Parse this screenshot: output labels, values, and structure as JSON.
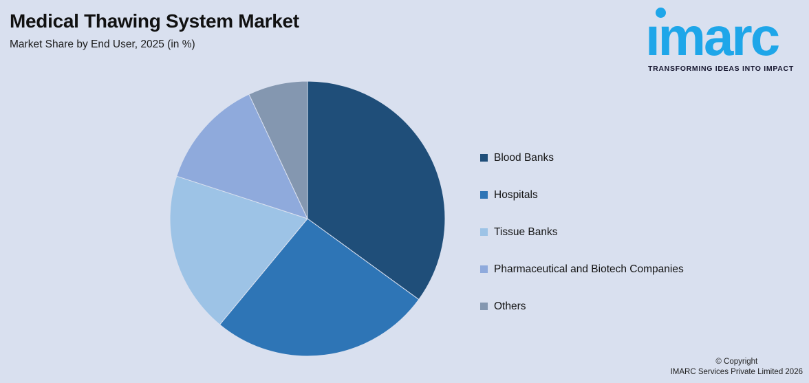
{
  "header": {
    "title": "Medical Thawing System Market",
    "subtitle": "Market Share by End User, 2025 (in %)"
  },
  "logo": {
    "text": "imarc",
    "tagline": "TRANSFORMING IDEAS INTO IMPACT",
    "brand_color": "#1ea6e9"
  },
  "chart_data": {
    "type": "pie",
    "title": "Medical Thawing System Market",
    "subtitle": "Market Share by End User, 2025 (in %)",
    "categories": [
      "Blood Banks",
      "Hospitals",
      "Tissue Banks",
      "Pharmaceutical and Biotech Companies",
      "Others"
    ],
    "values": [
      35,
      26,
      19,
      13,
      7
    ],
    "colors": [
      "#1f4e79",
      "#2e75b6",
      "#9dc3e6",
      "#8faadc",
      "#8497b0"
    ],
    "background": "#d9e0ef",
    "start_angle_deg": 0,
    "direction": "clockwise",
    "legend_position": "right",
    "data_labels_shown": false
  },
  "footer": {
    "line1": "© Copyright",
    "line2": "IMARC Services Private Limited 2026"
  }
}
